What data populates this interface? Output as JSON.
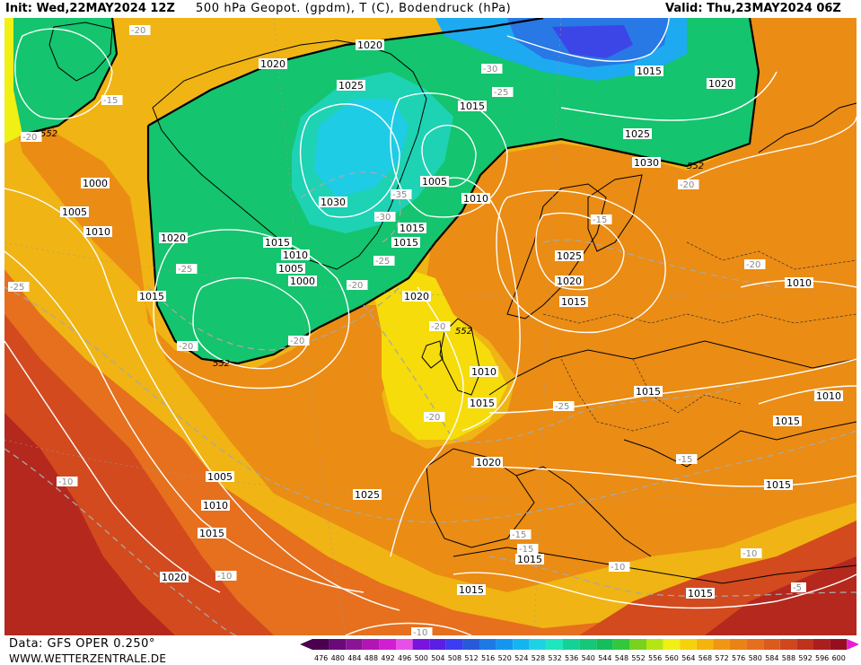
{
  "header": {
    "init_label": "Init: Wed,22MAY2024 12Z",
    "title": "500 hPa Geopot. (gpdm), T (C), Bodendruck (hPa)",
    "valid_label": "Valid: Thu,23MAY2024 06Z"
  },
  "footer": {
    "source": "Data: GFS OPER 0.250°",
    "site": "WWW.WETTERZENTRALE.DE"
  },
  "legend": {
    "values": [
      "476",
      "480",
      "484",
      "488",
      "492",
      "496",
      "500",
      "504",
      "508",
      "512",
      "516",
      "520",
      "524",
      "528",
      "532",
      "536",
      "540",
      "544",
      "548",
      "552",
      "556",
      "560",
      "564",
      "568",
      "572",
      "576",
      "580",
      "584",
      "588",
      "592",
      "596",
      "600"
    ],
    "colors": [
      "#4a004f",
      "#6a0a78",
      "#8a1496",
      "#b414b4",
      "#d21ed2",
      "#e650e6",
      "#7814dc",
      "#5a1ee6",
      "#3c3cf0",
      "#285ad7",
      "#1e78e6",
      "#1496f0",
      "#14b4f0",
      "#1ed2e6",
      "#1ee6be",
      "#14d296",
      "#14c878",
      "#14be5a",
      "#32c83c",
      "#78d21e",
      "#b4e614",
      "#f0f014",
      "#f5d20a",
      "#f5b40a",
      "#f09614",
      "#eb8214",
      "#e66e1e",
      "#dc5a1e",
      "#d2461e",
      "#be321e",
      "#aa1e1e",
      "#960f1e"
    ],
    "arrow_left_color": "#4a004f",
    "arrow_right_color": "#e61ed2"
  },
  "map": {
    "isohypse_labels": [
      "552",
      "552",
      "552",
      "552"
    ],
    "pressure_labels": [
      "1020",
      "1020",
      "1025",
      "1015",
      "1020",
      "1015",
      "1025",
      "1030",
      "1030",
      "1005",
      "1010",
      "1015",
      "1015",
      "1010",
      "1005",
      "1000",
      "1015",
      "1000",
      "1005",
      "1010",
      "1020",
      "1015",
      "1025",
      "1020",
      "1015",
      "1020",
      "1015",
      "1010",
      "1015",
      "1010",
      "1015",
      "1010",
      "1015",
      "1020",
      "1005",
      "1010",
      "1015",
      "1020",
      "1025",
      "1015",
      "1015",
      "1015",
      "1010"
    ],
    "temperature_labels": [
      "-20",
      "-15",
      "-20",
      "-30",
      "-25",
      "-35",
      "-30",
      "-25",
      "-25",
      "-20",
      "-20",
      "-25",
      "-20",
      "-15",
      "-20",
      "-10",
      "-20",
      "-20",
      "-25",
      "-20",
      "-15",
      "-15",
      "-15",
      "-10",
      "-10",
      "-10",
      "-5",
      "-10"
    ],
    "colors": {
      "coast": "#000000",
      "isobar": "#ffffff",
      "isotherm": "#a0a0a0",
      "grid": "#9a9a9a"
    }
  }
}
